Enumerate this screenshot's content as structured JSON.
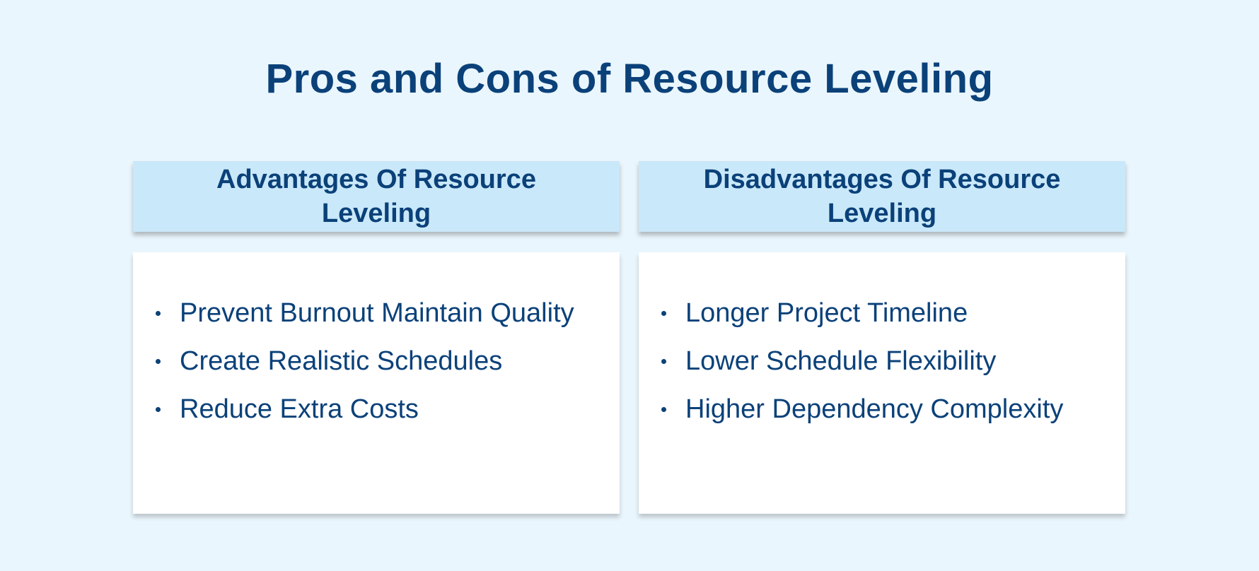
{
  "title": "Pros and Cons of Resource Leveling",
  "advantages": {
    "heading": "Advantages Of Resource Leveling",
    "items": [
      "Prevent Burnout Maintain Quality",
      "Create Realistic Schedules",
      "Reduce Extra Costs"
    ]
  },
  "disadvantages": {
    "heading": "Disadvantages Of Resource Leveling",
    "items": [
      "Longer Project Timeline",
      "Lower Schedule Flexibility",
      "Higher Dependency Complexity"
    ]
  },
  "colors": {
    "background": "#eaf6fd",
    "header": "#c9e8f9",
    "text": "#0b4179"
  }
}
